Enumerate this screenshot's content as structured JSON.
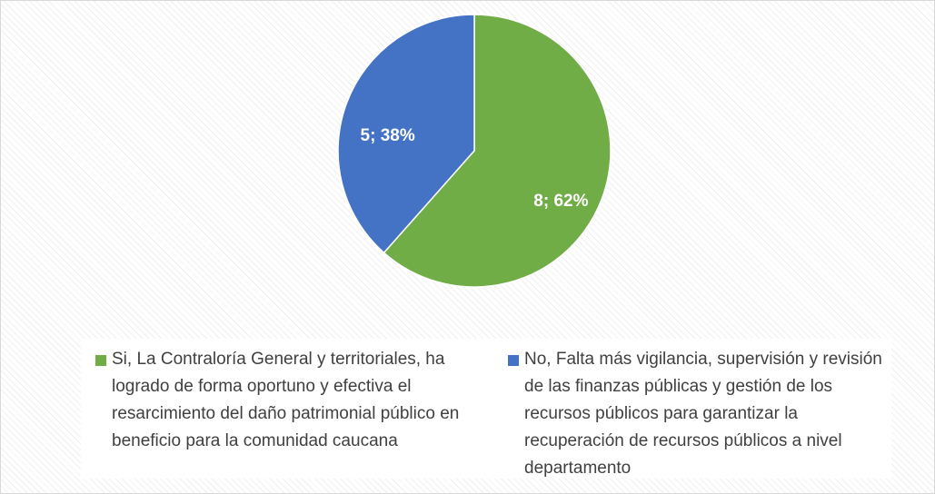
{
  "chart_data": {
    "type": "pie",
    "categories": [
      "Si, La Contraloría General y territoriales, ha logrado de forma oportuno y efectiva el resarcimiento del daño patrimonial público en beneficio para la comunidad caucana",
      "No, Falta más vigilancia, supervisión y revisión de las finanzas públicas y gestión de los recursos públicos para garantizar la recuperación de recursos públicos a nivel departamento"
    ],
    "values": [
      8,
      5
    ],
    "value_labels": [
      "8; 62%",
      "5; 38%"
    ],
    "colors": [
      "#70ad47",
      "#4472c4"
    ],
    "legend": "bottom"
  }
}
